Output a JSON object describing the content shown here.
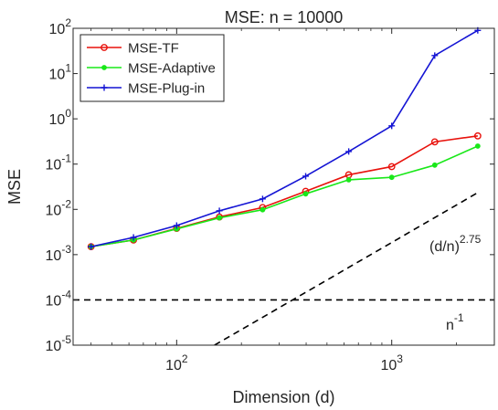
{
  "chart_data": {
    "type": "line",
    "title": "MSE: n = 10000",
    "xlabel": "Dimension (d)",
    "ylabel": "MSE",
    "xscale": "log",
    "yscale": "log",
    "xlim": [
      33,
      3000
    ],
    "ylim": [
      1e-05,
      100
    ],
    "grid": false,
    "legend": "top-left",
    "x_ticks": [
      {
        "value": 100,
        "base": "10",
        "exp": "2"
      },
      {
        "value": 1000,
        "base": "10",
        "exp": "3"
      }
    ],
    "y_ticks": [
      {
        "value": 1e-05,
        "base": "10",
        "exp": "-5"
      },
      {
        "value": 0.0001,
        "base": "10",
        "exp": "-4"
      },
      {
        "value": 0.001,
        "base": "10",
        "exp": "-3"
      },
      {
        "value": 0.01,
        "base": "10",
        "exp": "-2"
      },
      {
        "value": 0.1,
        "base": "10",
        "exp": "-1"
      },
      {
        "value": 1,
        "base": "10",
        "exp": "0"
      },
      {
        "value": 10,
        "base": "10",
        "exp": "1"
      },
      {
        "value": 100,
        "base": "10",
        "exp": "2"
      }
    ],
    "x": [
      40,
      63,
      100,
      158,
      251,
      398,
      631,
      1000,
      1585,
      2512
    ],
    "series": [
      {
        "name": "MSE-TF",
        "color": "#e8120c",
        "marker": "circle",
        "values": [
          0.0015,
          0.0021,
          0.0038,
          0.0068,
          0.011,
          0.025,
          0.058,
          0.088,
          0.31,
          0.42
        ]
      },
      {
        "name": "MSE-Adaptive",
        "color": "#19e819",
        "marker": "dot",
        "values": [
          0.0015,
          0.0021,
          0.0037,
          0.0065,
          0.0098,
          0.022,
          0.045,
          0.051,
          0.095,
          0.25
        ]
      },
      {
        "name": "MSE-Plug-in",
        "color": "#1414d4",
        "marker": "plus",
        "values": [
          0.0015,
          0.0024,
          0.0044,
          0.0093,
          0.017,
          0.054,
          0.19,
          0.7,
          25,
          90
        ]
      }
    ],
    "reference_lines": [
      {
        "label_base": "(d/n)",
        "label_exp": "2.75",
        "color": "#000000",
        "style": "dashed",
        "x": [
          150,
          2512
        ],
        "y": [
          1e-05,
          0.0234
        ]
      },
      {
        "label_base": "n",
        "label_exp": "-1",
        "color": "#000000",
        "style": "dashed",
        "x": [
          33,
          3000
        ],
        "y": [
          0.0001,
          0.0001
        ]
      }
    ]
  }
}
